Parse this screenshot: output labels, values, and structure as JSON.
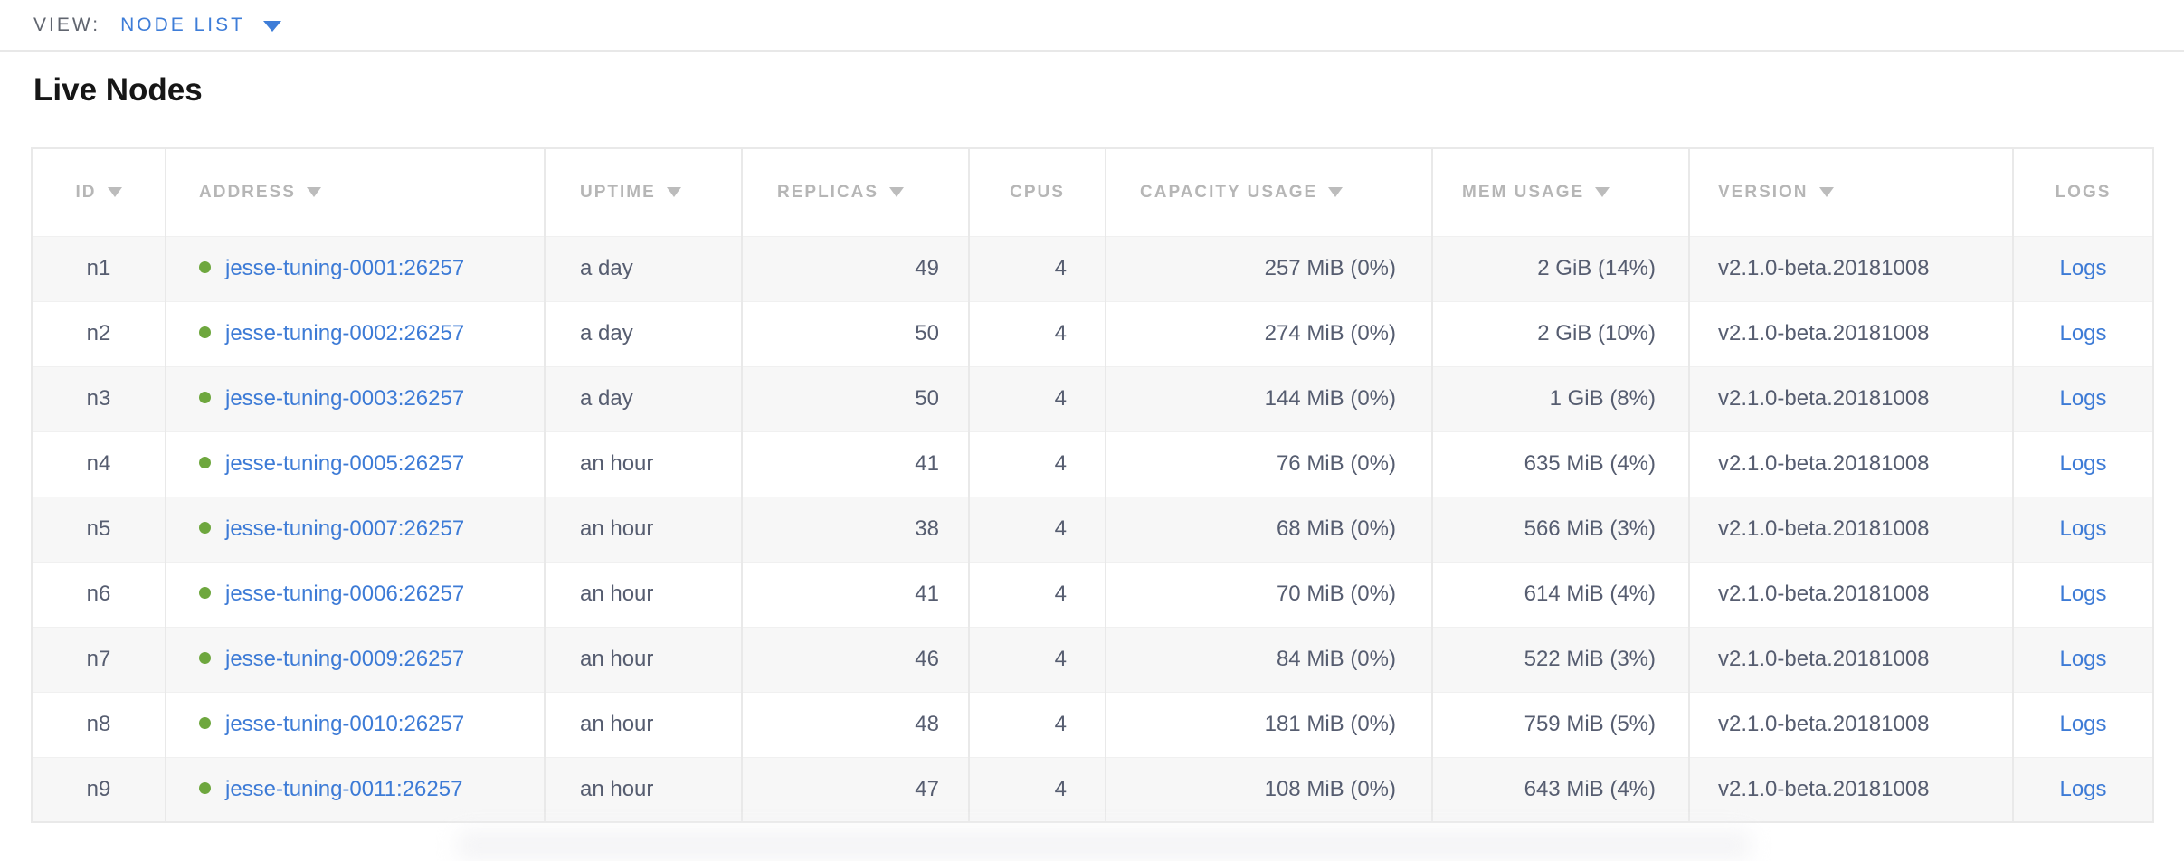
{
  "view_bar": {
    "label": "VIEW:",
    "selected_view": "NODE LIST"
  },
  "page": {
    "title": "Live Nodes"
  },
  "colors": {
    "link_blue": "#3d7bd6",
    "dropdown_blue": "#3e7dd8",
    "healthy_green": "#6ea73e",
    "header_gray": "#b6b6b6",
    "body_text": "#565d70",
    "row_stripe": "#f7f7f7"
  },
  "table": {
    "columns": [
      {
        "key": "id",
        "label": "ID",
        "sortable": true
      },
      {
        "key": "address",
        "label": "ADDRESS",
        "sortable": true
      },
      {
        "key": "uptime",
        "label": "UPTIME",
        "sortable": true
      },
      {
        "key": "replicas",
        "label": "REPLICAS",
        "sortable": true
      },
      {
        "key": "cpus",
        "label": "CPUS",
        "sortable": false
      },
      {
        "key": "capacity",
        "label": "CAPACITY USAGE",
        "sortable": true
      },
      {
        "key": "mem",
        "label": "MEM USAGE",
        "sortable": true
      },
      {
        "key": "version",
        "label": "VERSION",
        "sortable": true
      },
      {
        "key": "logs",
        "label": "LOGS",
        "sortable": false
      }
    ],
    "rows": [
      {
        "id": "n1",
        "address": "jesse-tuning-0001:26257",
        "status": "healthy",
        "uptime": "a day",
        "replicas": "49",
        "cpus": "4",
        "capacity": "257 MiB (0%)",
        "mem": "2 GiB (14%)",
        "version": "v2.1.0-beta.20181008",
        "logs": "Logs"
      },
      {
        "id": "n2",
        "address": "jesse-tuning-0002:26257",
        "status": "healthy",
        "uptime": "a day",
        "replicas": "50",
        "cpus": "4",
        "capacity": "274 MiB (0%)",
        "mem": "2 GiB (10%)",
        "version": "v2.1.0-beta.20181008",
        "logs": "Logs"
      },
      {
        "id": "n3",
        "address": "jesse-tuning-0003:26257",
        "status": "healthy",
        "uptime": "a day",
        "replicas": "50",
        "cpus": "4",
        "capacity": "144 MiB (0%)",
        "mem": "1 GiB (8%)",
        "version": "v2.1.0-beta.20181008",
        "logs": "Logs"
      },
      {
        "id": "n4",
        "address": "jesse-tuning-0005:26257",
        "status": "healthy",
        "uptime": "an hour",
        "replicas": "41",
        "cpus": "4",
        "capacity": "76 MiB (0%)",
        "mem": "635 MiB (4%)",
        "version": "v2.1.0-beta.20181008",
        "logs": "Logs"
      },
      {
        "id": "n5",
        "address": "jesse-tuning-0007:26257",
        "status": "healthy",
        "uptime": "an hour",
        "replicas": "38",
        "cpus": "4",
        "capacity": "68 MiB (0%)",
        "mem": "566 MiB (3%)",
        "version": "v2.1.0-beta.20181008",
        "logs": "Logs"
      },
      {
        "id": "n6",
        "address": "jesse-tuning-0006:26257",
        "status": "healthy",
        "uptime": "an hour",
        "replicas": "41",
        "cpus": "4",
        "capacity": "70 MiB (0%)",
        "mem": "614 MiB (4%)",
        "version": "v2.1.0-beta.20181008",
        "logs": "Logs"
      },
      {
        "id": "n7",
        "address": "jesse-tuning-0009:26257",
        "status": "healthy",
        "uptime": "an hour",
        "replicas": "46",
        "cpus": "4",
        "capacity": "84 MiB (0%)",
        "mem": "522 MiB (3%)",
        "version": "v2.1.0-beta.20181008",
        "logs": "Logs"
      },
      {
        "id": "n8",
        "address": "jesse-tuning-0010:26257",
        "status": "healthy",
        "uptime": "an hour",
        "replicas": "48",
        "cpus": "4",
        "capacity": "181 MiB (0%)",
        "mem": "759 MiB (5%)",
        "version": "v2.1.0-beta.20181008",
        "logs": "Logs"
      },
      {
        "id": "n9",
        "address": "jesse-tuning-0011:26257",
        "status": "healthy",
        "uptime": "an hour",
        "replicas": "47",
        "cpus": "4",
        "capacity": "108 MiB (0%)",
        "mem": "643 MiB (4%)",
        "version": "v2.1.0-beta.20181008",
        "logs": "Logs"
      }
    ]
  }
}
